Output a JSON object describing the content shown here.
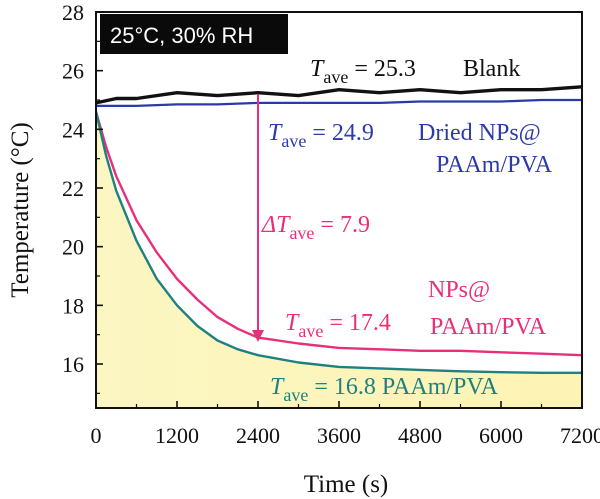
{
  "chart_data": {
    "type": "line",
    "title": "",
    "xlabel": "Time (s)",
    "ylabel": "Temperature (°C)",
    "xlim": [
      0,
      7200
    ],
    "ylim": [
      14.5,
      28
    ],
    "x_ticks": [
      "0",
      "1200",
      "2400",
      "3600",
      "4800",
      "6000",
      "7200"
    ],
    "y_ticks": [
      "16",
      "18",
      "20",
      "22",
      "24",
      "26",
      "28"
    ],
    "grid": false,
    "condition_label": "25°C, 30% RH",
    "series": [
      {
        "name": "Blank",
        "color": "#111111",
        "x": [
          0,
          300,
          600,
          1200,
          1800,
          2400,
          3000,
          3600,
          4200,
          4800,
          5400,
          6000,
          6600,
          7200
        ],
        "y": [
          24.9,
          25.0,
          25.1,
          25.2,
          25.2,
          25.2,
          25.2,
          25.3,
          25.3,
          25.3,
          25.3,
          25.3,
          25.4,
          25.4
        ]
      },
      {
        "name": "Dried NPs@ PAAm/PVA",
        "color": "#2b3aa8",
        "x": [
          0,
          300,
          600,
          1200,
          1800,
          2400,
          3000,
          3600,
          4200,
          4800,
          5400,
          6000,
          6600,
          7200
        ],
        "y": [
          24.8,
          24.8,
          24.8,
          24.85,
          24.85,
          24.9,
          24.9,
          24.9,
          24.9,
          24.95,
          24.95,
          24.95,
          25.0,
          25.0
        ]
      },
      {
        "name": "NPs@ PAAm/PVA",
        "color": "#e8307a",
        "x": [
          0,
          150,
          300,
          600,
          900,
          1200,
          1500,
          1800,
          2100,
          2400,
          3000,
          3600,
          4200,
          4800,
          5400,
          6000,
          6600,
          7200
        ],
        "y": [
          24.6,
          23.4,
          22.4,
          20.9,
          19.8,
          18.9,
          18.2,
          17.6,
          17.2,
          16.9,
          16.7,
          16.55,
          16.5,
          16.45,
          16.45,
          16.4,
          16.35,
          16.3
        ]
      },
      {
        "name": "PAAm/PVA",
        "color": "#1e8080",
        "x": [
          0,
          150,
          300,
          600,
          900,
          1200,
          1500,
          1800,
          2100,
          2400,
          3000,
          3600,
          4200,
          4800,
          5400,
          6000,
          6600,
          7200
        ],
        "y": [
          24.6,
          23.1,
          21.9,
          20.2,
          18.9,
          18.0,
          17.3,
          16.8,
          16.5,
          16.3,
          16.05,
          15.9,
          15.85,
          15.8,
          15.75,
          15.72,
          15.7,
          15.7
        ]
      }
    ],
    "annotations": [
      {
        "kind": "text",
        "base": "T",
        "sub": "ave",
        "rest": " = 25.3",
        "extra": "Blank",
        "color": "#111111"
      },
      {
        "kind": "text",
        "base": "T",
        "sub": "ave",
        "rest": " = 24.9",
        "extra": "Dried NPs@",
        "extra2": "PAAm/PVA",
        "color": "#2b3aa8"
      },
      {
        "kind": "text",
        "base": "ΔT",
        "sub": "ave",
        "rest": " = 7.9",
        "color": "#e8307a"
      },
      {
        "kind": "text",
        "base": "T",
        "sub": "ave",
        "rest": " = 17.4",
        "extra": "NPs@",
        "extra2": "PAAm/PVA",
        "color": "#e8307a"
      },
      {
        "kind": "text",
        "base": "T",
        "sub": "ave",
        "rest": " = 16.8",
        "extra": "PAAm/PVA",
        "color": "#1e8080"
      }
    ],
    "arrow": {
      "x": 2400,
      "y_from": 25.2,
      "y_to": 16.75,
      "color": "#e8307a"
    }
  }
}
